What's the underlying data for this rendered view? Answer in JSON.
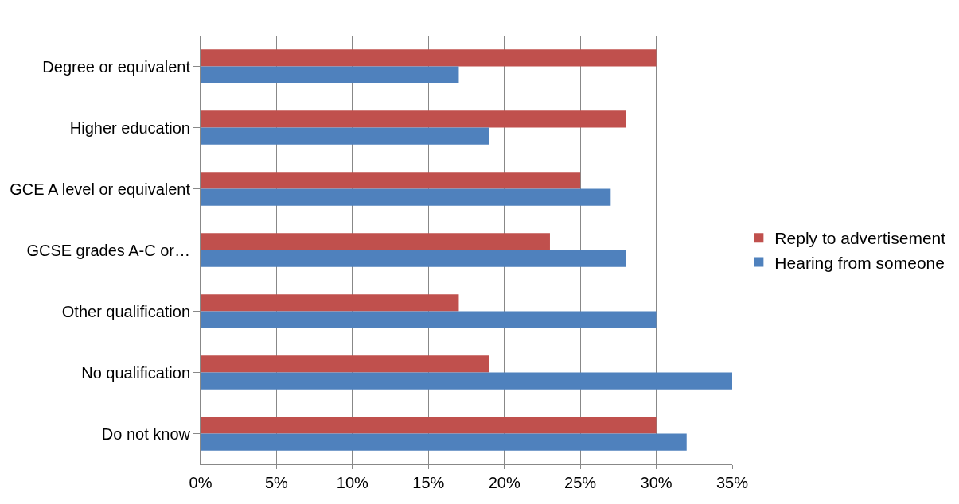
{
  "chart_data": {
    "type": "bar",
    "orientation": "horizontal",
    "categories": [
      "Degree or equivalent",
      "Higher education",
      "GCE A level or equivalent",
      "GCSE grades A-C or…",
      "Other qualification",
      "No qualification",
      "Do not know"
    ],
    "series": [
      {
        "name": "Reply to advertisement",
        "color": "#c0504d",
        "values": [
          30,
          28,
          25,
          23,
          17,
          19,
          30
        ]
      },
      {
        "name": "Hearing from someone",
        "color": "#4f81bd",
        "values": [
          17,
          19,
          27,
          28,
          30,
          35,
          32
        ]
      }
    ],
    "xlim": [
      0,
      35
    ],
    "xticks": [
      {
        "value": 0,
        "label": "0%"
      },
      {
        "value": 5,
        "label": "5%"
      },
      {
        "value": 10,
        "label": "10%"
      },
      {
        "value": 15,
        "label": "15%"
      },
      {
        "value": 20,
        "label": "20%"
      },
      {
        "value": 25,
        "label": "25%"
      },
      {
        "value": 30,
        "label": "30%"
      },
      {
        "value": 35,
        "label": "35%"
      }
    ],
    "grid": "x",
    "legend": "right"
  }
}
